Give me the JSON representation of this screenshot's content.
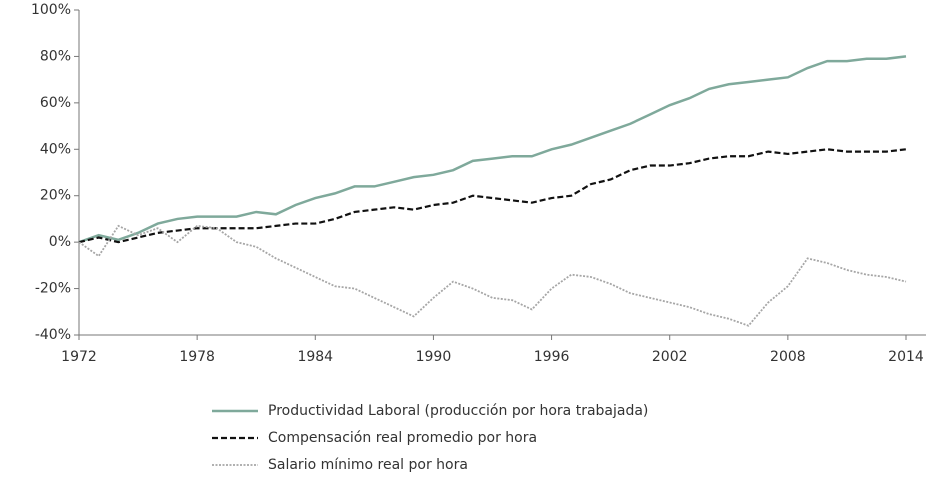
{
  "chart_data": {
    "type": "line",
    "x": [
      1972,
      1973,
      1974,
      1975,
      1976,
      1977,
      1978,
      1979,
      1980,
      1981,
      1982,
      1983,
      1984,
      1985,
      1986,
      1987,
      1988,
      1989,
      1990,
      1991,
      1992,
      1993,
      1994,
      1995,
      1996,
      1997,
      1998,
      1999,
      2000,
      2001,
      2002,
      2003,
      2004,
      2005,
      2006,
      2007,
      2008,
      2009,
      2010,
      2011,
      2012,
      2013,
      2014
    ],
    "series": [
      {
        "name": "Productividad Laboral (producción por hora trabajada)",
        "color": "#7fa99b",
        "dash": "solid",
        "values": [
          0,
          3,
          1,
          4,
          8,
          10,
          11,
          11,
          11,
          13,
          12,
          16,
          19,
          21,
          24,
          24,
          26,
          28,
          29,
          31,
          35,
          36,
          37,
          37,
          40,
          42,
          45,
          48,
          51,
          55,
          59,
          62,
          66,
          68,
          69,
          70,
          71,
          75,
          78,
          78,
          79,
          79,
          80
        ]
      },
      {
        "name": "Compensación real promedio por hora",
        "color": "#111111",
        "dash": "dashed",
        "values": [
          0,
          2,
          0,
          2,
          4,
          5,
          6,
          6,
          6,
          6,
          7,
          8,
          8,
          10,
          13,
          14,
          15,
          14,
          16,
          17,
          20,
          19,
          18,
          17,
          19,
          20,
          25,
          27,
          31,
          33,
          33,
          34,
          36,
          37,
          37,
          39,
          38,
          39,
          40,
          39,
          39,
          39,
          40
        ]
      },
      {
        "name": "Salario mínimo real por hora",
        "color": "#a6a6a6",
        "dash": "dotted",
        "values": [
          0,
          -6,
          7,
          3,
          6,
          0,
          7,
          6,
          0,
          -2,
          -7,
          -11,
          -15,
          -19,
          -20,
          -24,
          -28,
          -32,
          -24,
          -17,
          -20,
          -24,
          -25,
          -29,
          -20,
          -14,
          -15,
          -18,
          -22,
          -24,
          -26,
          -28,
          -31,
          -33,
          -36,
          -26,
          -19,
          -7,
          -9,
          -12,
          -14,
          -15,
          -17
        ]
      }
    ],
    "xlim": [
      1972,
      2014
    ],
    "xticks": [
      1972,
      1978,
      1984,
      1990,
      1996,
      2002,
      2008,
      2014
    ],
    "ylim": [
      -40,
      100
    ],
    "yticks": [
      {
        "value": -40,
        "label": "-40%"
      },
      {
        "value": -20,
        "label": "-20%"
      },
      {
        "value": 0,
        "label": "0%"
      },
      {
        "value": 20,
        "label": "20%"
      },
      {
        "value": 40,
        "label": "40%"
      },
      {
        "value": 60,
        "label": "60%"
      },
      {
        "value": 80,
        "label": "80%"
      },
      {
        "value": 100,
        "label": "100%"
      }
    ],
    "grid": false,
    "legend": "bottom"
  }
}
